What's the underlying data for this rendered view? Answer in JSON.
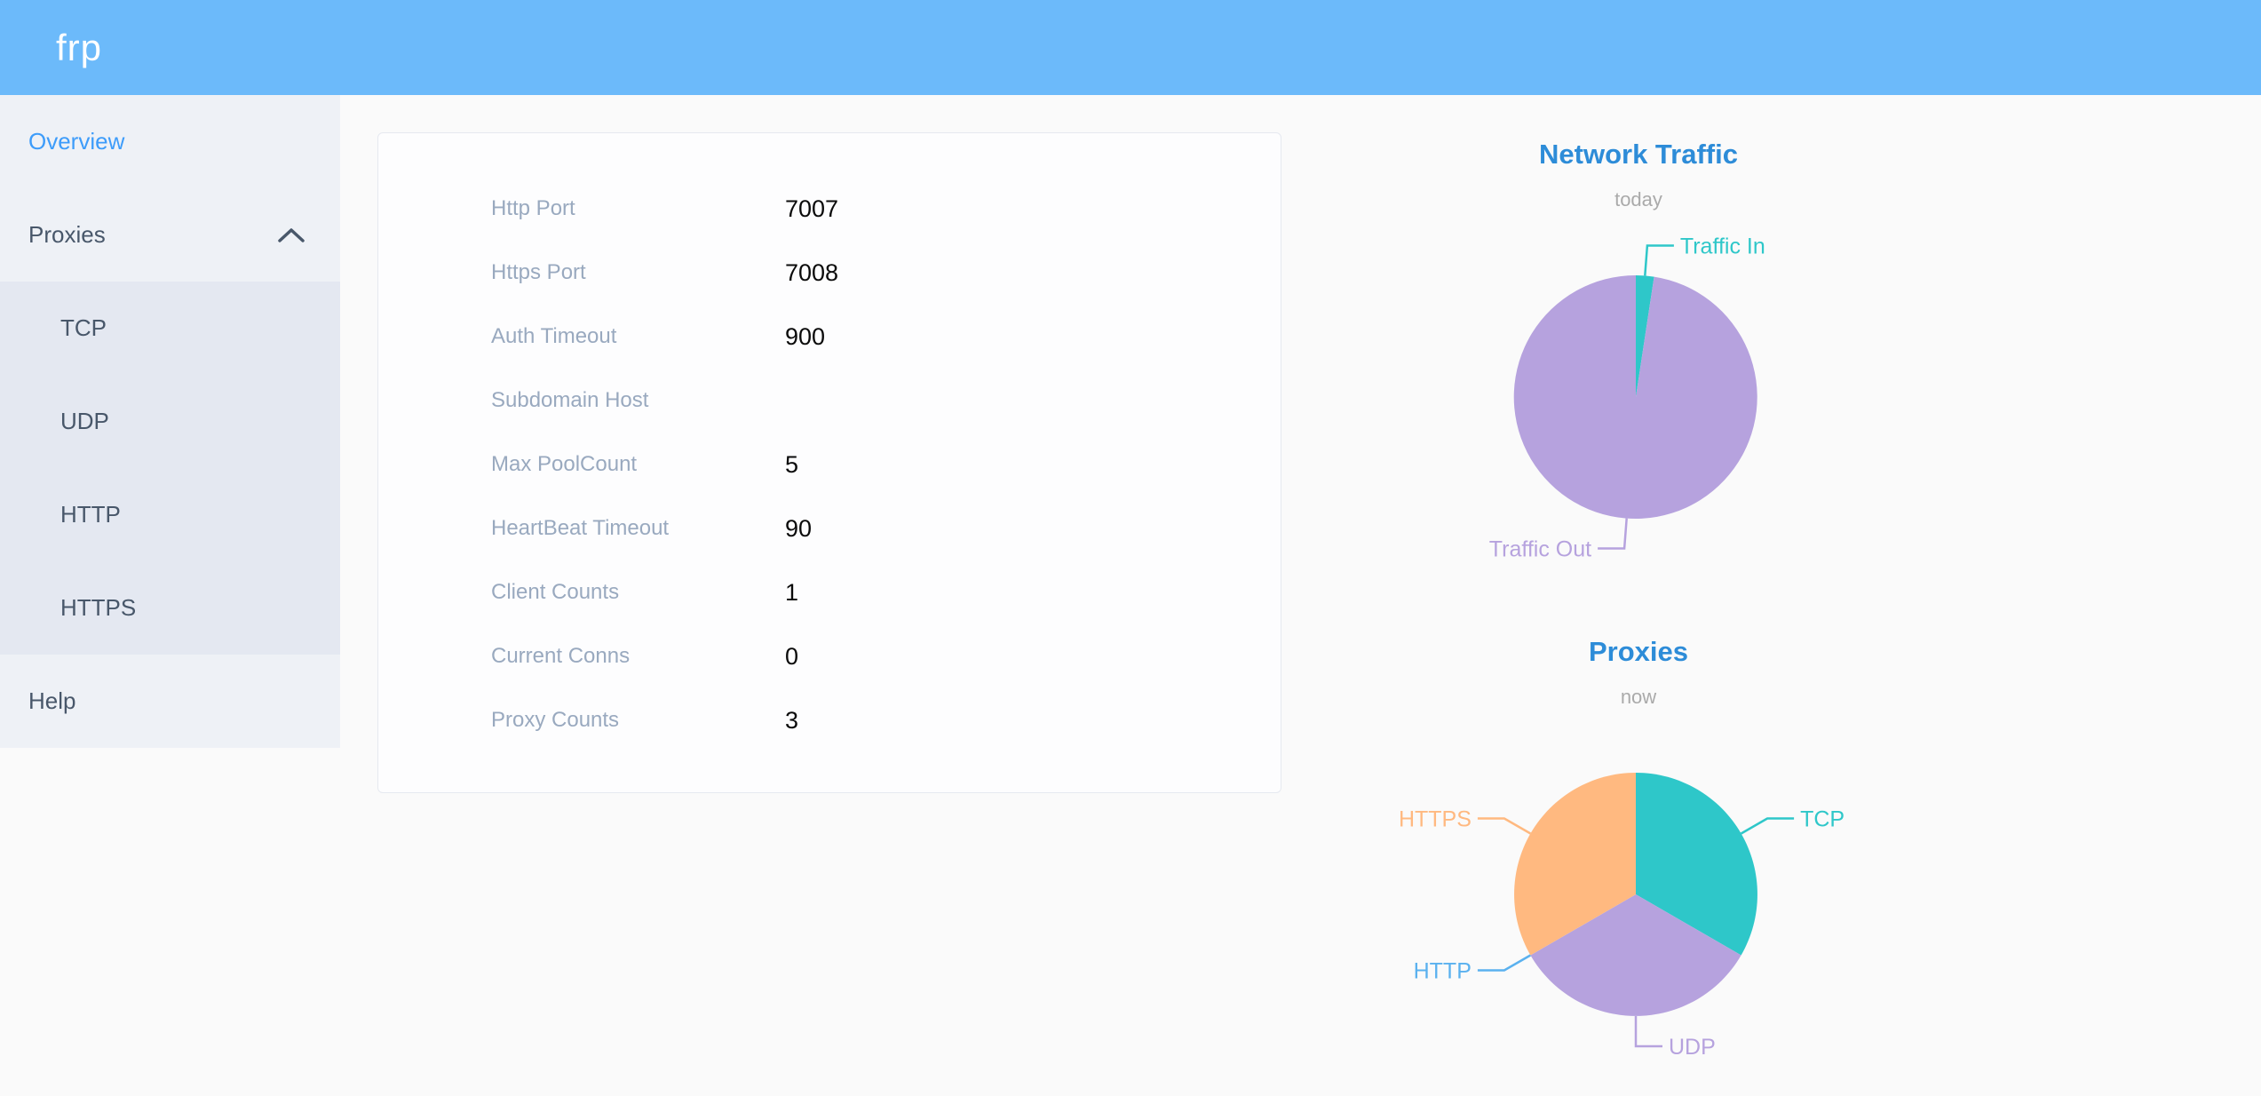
{
  "header": {
    "logo": "frp"
  },
  "sidebar": {
    "items": [
      {
        "label": "Overview",
        "type": "top",
        "active": true
      },
      {
        "label": "Proxies",
        "type": "top",
        "chevron": "up"
      },
      {
        "label": "TCP",
        "type": "sub"
      },
      {
        "label": "UDP",
        "type": "sub"
      },
      {
        "label": "HTTP",
        "type": "sub"
      },
      {
        "label": "HTTPS",
        "type": "sub"
      },
      {
        "label": "Help",
        "type": "top"
      }
    ]
  },
  "overview": {
    "rows": [
      {
        "label": "Http Port",
        "value": "7007"
      },
      {
        "label": "Https Port",
        "value": "7008"
      },
      {
        "label": "Auth Timeout",
        "value": "900"
      },
      {
        "label": "Subdomain Host",
        "value": ""
      },
      {
        "label": "Max PoolCount",
        "value": "5"
      },
      {
        "label": "HeartBeat Timeout",
        "value": "90"
      },
      {
        "label": "Client Counts",
        "value": "1"
      },
      {
        "label": "Current Conns",
        "value": "0"
      },
      {
        "label": "Proxy Counts",
        "value": "3"
      }
    ]
  },
  "chart_data": [
    {
      "type": "pie",
      "title": "Network Traffic",
      "subtitle": "today",
      "legend_position": "none",
      "values_note": "no numeric labels shown; shares estimated from arc angles",
      "slices": [
        {
          "name": "Traffic In",
          "value": 2.4,
          "color": "#2ec7c9"
        },
        {
          "name": "Traffic Out",
          "value": 97.6,
          "color": "#b6a2de"
        }
      ]
    },
    {
      "type": "pie",
      "title": "Proxies",
      "subtitle": "now",
      "legend_position": "none",
      "values_note": "counts by proxy type; three equal 120° slices, HTTP slice is zero",
      "slices": [
        {
          "name": "TCP",
          "value": 1,
          "color": "#2ec7c9"
        },
        {
          "name": "UDP",
          "value": 1,
          "color": "#b6a2de"
        },
        {
          "name": "HTTP",
          "value": 0,
          "color": "#5ab1ef"
        },
        {
          "name": "HTTPS",
          "value": 1,
          "color": "#ffb980"
        }
      ]
    }
  ],
  "colors": {
    "header_bg": "#6cbafa",
    "sidebar_bg": "#eef1f6",
    "submenu_bg": "#e4e8f1",
    "menu_text": "#48576a",
    "active_menu": "#3d9cfa",
    "card_border": "#e6e9f0",
    "label_gray": "#99a9bf",
    "chart_title_blue": "#2d8cd8",
    "subtitle_gray": "#aaaaaa",
    "pie_teal": "#2ec7c9",
    "pie_purple": "#b6a2de",
    "pie_blue": "#5ab1ef",
    "pie_orange": "#ffb980"
  }
}
